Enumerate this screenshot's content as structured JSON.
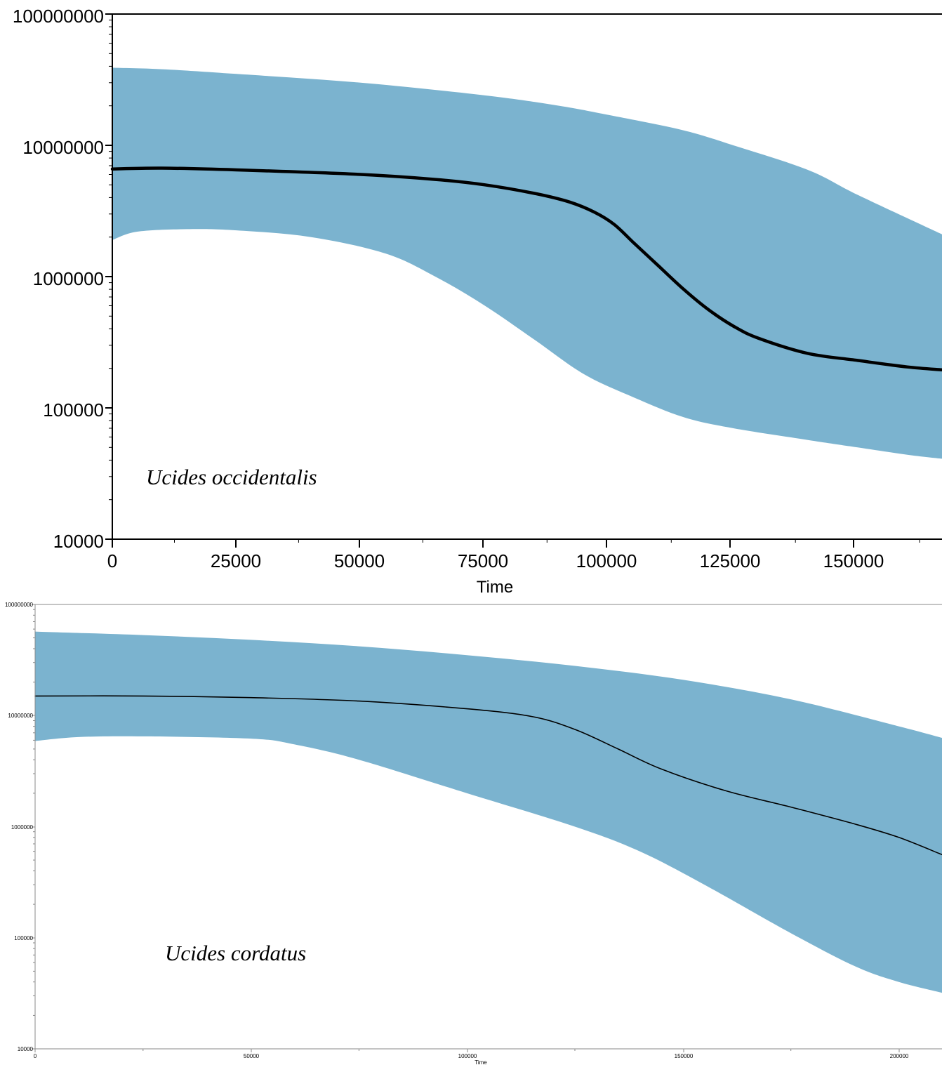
{
  "colors": {
    "band": "#7bb3cf",
    "median": "#000000",
    "frame": "#000000",
    "frame_light": "#8a8a8a"
  },
  "chart_data": [
    {
      "type": "area",
      "annotation": "Ucides occidentalis",
      "xlabel": "Time",
      "ylabel": "",
      "xscale": "linear",
      "yscale": "log",
      "xlim": [
        0,
        167000
      ],
      "ylim": [
        10000,
        100000000
      ],
      "xticks": [
        0,
        25000,
        50000,
        75000,
        100000,
        125000,
        150000
      ],
      "xtick_labels": [
        "0",
        "25000",
        "50000",
        "75000",
        "100000",
        "125000",
        "150000"
      ],
      "yticks": [
        10000,
        100000,
        1000000,
        10000000,
        100000000
      ],
      "ytick_labels": [
        "10000",
        "100000",
        "1000000",
        "10000000",
        "100000000"
      ],
      "grid": false,
      "legend": "none",
      "series": [
        {
          "role": "upper_95_hpd",
          "x": [
            0,
            10000,
            25000,
            50000,
            75000,
            90000,
            100000,
            115000,
            125000,
            140000,
            150000,
            167000
          ],
          "y": [
            39000000,
            38000000,
            35000000,
            30000000,
            24000000,
            20000000,
            17000000,
            13000000,
            10000000,
            6500000,
            4200000,
            2100000
          ]
        },
        {
          "role": "median",
          "x": [
            0,
            10000,
            25000,
            50000,
            65000,
            75000,
            85000,
            92000,
            97000,
            101000,
            105000,
            110000,
            115000,
            120000,
            125000,
            130000,
            140000,
            150000,
            160000,
            167000
          ],
          "y": [
            6600000,
            6700000,
            6500000,
            6000000,
            5500000,
            5000000,
            4300000,
            3700000,
            3100000,
            2500000,
            1800000,
            1200000,
            800000,
            560000,
            420000,
            340000,
            260000,
            230000,
            205000,
            195000
          ]
        },
        {
          "role": "lower_95_hpd",
          "x": [
            0,
            5000,
            15000,
            25000,
            40000,
            55000,
            65000,
            75000,
            85000,
            95000,
            105000,
            115000,
            125000,
            140000,
            150000,
            160000,
            167000
          ],
          "y": [
            1900000,
            2200000,
            2300000,
            2250000,
            2000000,
            1500000,
            1000000,
            600000,
            330000,
            180000,
            120000,
            85000,
            70000,
            57000,
            50000,
            44000,
            41000
          ]
        }
      ]
    },
    {
      "type": "area",
      "annotation": "Ucides cordatus",
      "xlabel": "Time",
      "ylabel": "",
      "xscale": "linear",
      "yscale": "log",
      "xlim": [
        0,
        210000
      ],
      "ylim": [
        10000,
        100000000
      ],
      "xticks": [
        0,
        50000,
        100000,
        150000,
        200000
      ],
      "xtick_labels": [
        "0",
        "50000",
        "100000",
        "150000",
        "200000"
      ],
      "yticks": [
        10000,
        100000,
        1000000,
        10000000,
        100000000
      ],
      "ytick_labels": [
        "10000",
        "100000",
        "1000000",
        "10000000",
        "100000000"
      ],
      "grid": false,
      "legend": "none",
      "series": [
        {
          "role": "upper_95_hpd",
          "x": [
            0,
            25000,
            50000,
            75000,
            100000,
            125000,
            150000,
            175000,
            200000,
            210000
          ],
          "y": [
            57000000,
            53000000,
            48000000,
            42000000,
            35000000,
            28000000,
            21000000,
            14000000,
            8000000,
            6300000
          ]
        },
        {
          "role": "median",
          "x": [
            0,
            25000,
            50000,
            75000,
            100000,
            115000,
            125000,
            135000,
            145000,
            160000,
            175000,
            190000,
            200000,
            210000
          ],
          "y": [
            15000000,
            15000000,
            14500000,
            13500000,
            11500000,
            9800000,
            7500000,
            5000000,
            3300000,
            2100000,
            1500000,
            1050000,
            800000,
            560000
          ]
        },
        {
          "role": "lower_95_hpd",
          "x": [
            0,
            10000,
            25000,
            50000,
            60000,
            75000,
            100000,
            125000,
            140000,
            155000,
            175000,
            190000,
            200000,
            210000
          ],
          "y": [
            5900000,
            6400000,
            6500000,
            6200000,
            5500000,
            4000000,
            2000000,
            1000000,
            600000,
            300000,
            110000,
            55000,
            40000,
            32000
          ]
        }
      ]
    }
  ]
}
